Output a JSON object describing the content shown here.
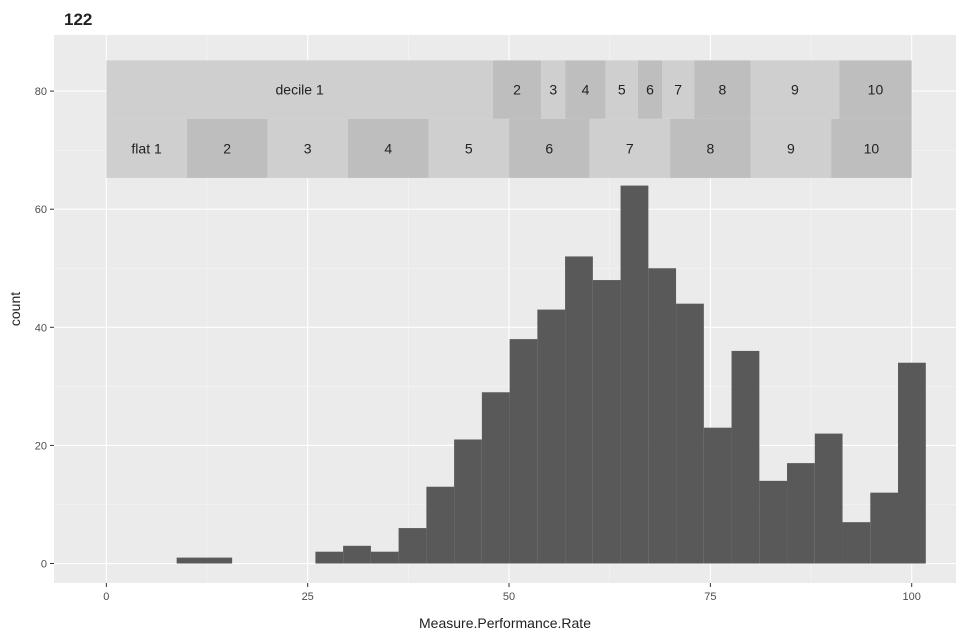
{
  "chart_data": {
    "type": "bar",
    "title": "122",
    "xlabel": "Measure.Performance.Rate",
    "ylabel": "count",
    "xlim": [
      -6.5,
      105.5
    ],
    "ylim": [
      -3.3,
      89.5
    ],
    "x_ticks": [
      0,
      25,
      50,
      75,
      100
    ],
    "y_ticks": [
      0,
      20,
      40,
      60,
      80
    ],
    "grid": true,
    "colors": {
      "panel": "#ebebeb",
      "grid_major": "#ffffff",
      "grid_minor": "#f5f5f5",
      "bars": "#595959",
      "band_dark": "#bebebe",
      "band_light": "#cfcfcf"
    },
    "bins": [
      {
        "x0": 8.73,
        "x1": 15.62,
        "count": 1
      },
      {
        "x0": 25.96,
        "x1": 29.4,
        "count": 2
      },
      {
        "x0": 29.4,
        "x1": 32.85,
        "count": 3
      },
      {
        "x0": 32.85,
        "x1": 36.29,
        "count": 2
      },
      {
        "x0": 36.29,
        "x1": 39.74,
        "count": 6
      },
      {
        "x0": 39.74,
        "x1": 43.18,
        "count": 13
      },
      {
        "x0": 43.18,
        "x1": 46.63,
        "count": 21
      },
      {
        "x0": 46.63,
        "x1": 50.07,
        "count": 29
      },
      {
        "x0": 50.07,
        "x1": 53.52,
        "count": 38
      },
      {
        "x0": 53.52,
        "x1": 56.96,
        "count": 43
      },
      {
        "x0": 56.96,
        "x1": 60.41,
        "count": 52
      },
      {
        "x0": 60.41,
        "x1": 63.85,
        "count": 48
      },
      {
        "x0": 63.85,
        "x1": 67.3,
        "count": 64
      },
      {
        "x0": 67.3,
        "x1": 70.74,
        "count": 50
      },
      {
        "x0": 70.74,
        "x1": 74.19,
        "count": 44
      },
      {
        "x0": 74.19,
        "x1": 77.63,
        "count": 23
      },
      {
        "x0": 77.63,
        "x1": 81.08,
        "count": 36
      },
      {
        "x0": 81.08,
        "x1": 84.52,
        "count": 14
      },
      {
        "x0": 84.52,
        "x1": 87.97,
        "count": 17
      },
      {
        "x0": 87.97,
        "x1": 91.41,
        "count": 22
      },
      {
        "x0": 91.41,
        "x1": 94.86,
        "count": 7
      },
      {
        "x0": 94.86,
        "x1": 98.3,
        "count": 12
      },
      {
        "x0": 98.3,
        "x1": 101.75,
        "count": 34
      }
    ],
    "band_rows": [
      {
        "y_range": [
          75.3,
          85.2
        ],
        "segments": [
          {
            "label": "decile 1",
            "x0": 0,
            "x1": 48.0,
            "shade": "light"
          },
          {
            "label": "2",
            "x0": 48.0,
            "x1": 54.0,
            "shade": "dark"
          },
          {
            "label": "3",
            "x0": 54.0,
            "x1": 57.0,
            "shade": "light"
          },
          {
            "label": "4",
            "x0": 57.0,
            "x1": 62.0,
            "shade": "dark"
          },
          {
            "label": "5",
            "x0": 62.0,
            "x1": 66.0,
            "shade": "light"
          },
          {
            "label": "6",
            "x0": 66.0,
            "x1": 69.0,
            "shade": "dark"
          },
          {
            "label": "7",
            "x0": 69.0,
            "x1": 73.0,
            "shade": "light"
          },
          {
            "label": "8",
            "x0": 73.0,
            "x1": 80.0,
            "shade": "dark"
          },
          {
            "label": "9",
            "x0": 80.0,
            "x1": 91.0,
            "shade": "light"
          },
          {
            "label": "10",
            "x0": 91.0,
            "x1": 100.0,
            "shade": "dark"
          }
        ]
      },
      {
        "y_range": [
          65.3,
          75.3
        ],
        "segments": [
          {
            "label": "flat 1",
            "x0": 0,
            "x1": 10,
            "shade": "light"
          },
          {
            "label": "2",
            "x0": 10,
            "x1": 20,
            "shade": "dark"
          },
          {
            "label": "3",
            "x0": 20,
            "x1": 30,
            "shade": "light"
          },
          {
            "label": "4",
            "x0": 30,
            "x1": 40,
            "shade": "dark"
          },
          {
            "label": "5",
            "x0": 40,
            "x1": 50,
            "shade": "light"
          },
          {
            "label": "6",
            "x0": 50,
            "x1": 60,
            "shade": "dark"
          },
          {
            "label": "7",
            "x0": 60,
            "x1": 70,
            "shade": "light"
          },
          {
            "label": "8",
            "x0": 70,
            "x1": 80,
            "shade": "dark"
          },
          {
            "label": "9",
            "x0": 80,
            "x1": 90,
            "shade": "light"
          },
          {
            "label": "10",
            "x0": 90,
            "x1": 100,
            "shade": "dark"
          }
        ]
      }
    ]
  }
}
